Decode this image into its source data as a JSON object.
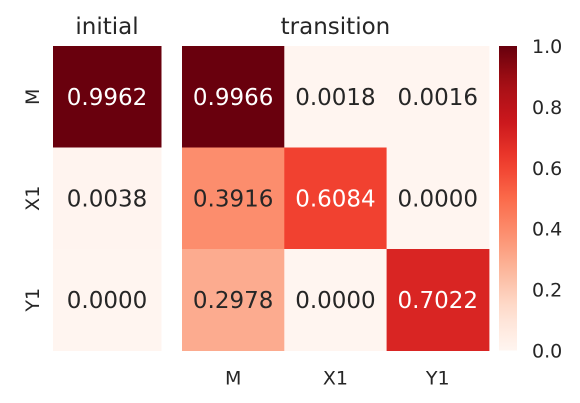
{
  "chart_data": [
    {
      "type": "heatmap",
      "title": "initial",
      "rows": [
        "M",
        "X1",
        "Y1"
      ],
      "columns": [],
      "values": [
        [
          0.9962
        ],
        [
          0.0038
        ],
        [
          0.0
        ]
      ],
      "cell_labels": [
        [
          "0.9962"
        ],
        [
          "0.0038"
        ],
        [
          "0.0000"
        ]
      ],
      "colormap": "Reds",
      "vmin": 0.0,
      "vmax": 1.0
    },
    {
      "type": "heatmap",
      "title": "transition",
      "rows": [],
      "columns": [
        "M",
        "X1",
        "Y1"
      ],
      "values": [
        [
          0.9966,
          0.0018,
          0.0016
        ],
        [
          0.3916,
          0.6084,
          0.0
        ],
        [
          0.2978,
          0.0,
          0.7022
        ]
      ],
      "cell_labels": [
        [
          "0.9966",
          "0.0018",
          "0.0016"
        ],
        [
          "0.3916",
          "0.6084",
          "0.0000"
        ],
        [
          "0.2978",
          "0.0000",
          "0.7022"
        ]
      ],
      "colormap": "Reds",
      "vmin": 0.0,
      "vmax": 1.0
    }
  ],
  "colorbar": {
    "ticks": [
      0.0,
      0.2,
      0.4,
      0.6,
      0.8,
      1.0
    ],
    "tick_labels": [
      "0.0",
      "0.2",
      "0.4",
      "0.6",
      "0.8",
      "1.0"
    ]
  }
}
